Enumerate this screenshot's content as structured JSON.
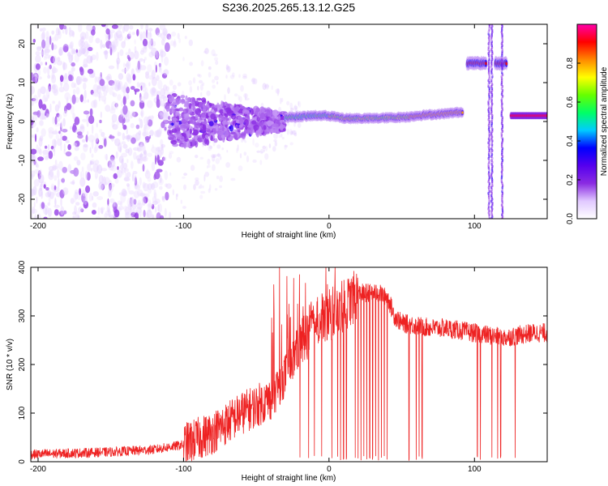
{
  "title": "S236.2025.265.13.12.G25",
  "chart_data": [
    {
      "type": "heatmap",
      "name": "spectrogram",
      "xlabel": "Height of straight line (km)",
      "ylabel": "Frequency (Hz)",
      "xlim": [
        -205,
        150
      ],
      "ylim": [
        -25,
        25
      ],
      "xticks": [
        -200,
        -100,
        0,
        100
      ],
      "yticks": [
        -20,
        -10,
        0,
        10,
        20
      ],
      "colorbar": {
        "label": "Normalized spectral amplitude",
        "range": [
          0,
          1
        ],
        "ticks": [
          "0.0",
          "0.2",
          "0.4",
          "0.6",
          "0.8"
        ],
        "colors": [
          "#ffffff",
          "#e0c8ff",
          "#8a2be2",
          "#5500ee",
          "#0000ff",
          "#00ccff",
          "#00ff66",
          "#66ff00",
          "#ffff00",
          "#ff8800",
          "#ff0000",
          "#ff00aa"
        ]
      },
      "features": [
        {
          "name": "noise",
          "x_range": [
            -205,
            -110
          ],
          "freq_range": [
            -25,
            25
          ],
          "amplitude": 0.05
        },
        {
          "name": "noisy-signal",
          "x_range": [
            -110,
            -30
          ],
          "freq_range": [
            -8,
            6
          ],
          "amplitude": 0.12
        },
        {
          "name": "carrier",
          "x": [
            -30,
            -10,
            0,
            10,
            30,
            55,
            60,
            80,
            92
          ],
          "freq": [
            1,
            1.5,
            1.5,
            0.8,
            0.8,
            1.2,
            1.5,
            2,
            2.5
          ],
          "amplitude": 0.8
        },
        {
          "name": "high-band",
          "x_range": [
            95,
            122
          ],
          "freq": 15,
          "amplitude": 0.9
        },
        {
          "name": "carrier-late",
          "x_range": [
            125,
            150
          ],
          "freq": 1.5,
          "amplitude": 0.95
        }
      ]
    },
    {
      "type": "line",
      "name": "snr",
      "xlabel": "Height of straight line (km)",
      "ylabel": "SNR (10 * v/v)",
      "xlim": [
        -205,
        150
      ],
      "ylim": [
        0,
        400
      ],
      "xticks": [
        -200,
        -100,
        0,
        100
      ],
      "yticks": [
        0,
        100,
        200,
        300,
        400
      ],
      "color": "#ee2222",
      "trend_x": [
        -205,
        -150,
        -120,
        -100,
        -80,
        -60,
        -40,
        -30,
        -20,
        -10,
        0,
        10,
        20,
        30,
        40,
        45,
        50,
        60,
        70,
        80,
        90,
        100,
        110,
        120,
        130,
        140,
        150
      ],
      "trend_y": [
        15,
        20,
        25,
        35,
        60,
        100,
        130,
        180,
        240,
        290,
        300,
        320,
        345,
        350,
        340,
        300,
        285,
        280,
        275,
        275,
        270,
        265,
        260,
        255,
        260,
        265,
        265
      ],
      "dropouts": [
        -20,
        -14,
        -10,
        -5,
        2,
        6,
        8,
        10,
        12,
        18,
        20,
        22,
        24,
        26,
        28,
        30,
        32,
        34,
        36,
        38,
        40,
        55,
        60,
        62,
        64,
        102,
        104,
        112,
        116,
        118,
        128
      ]
    }
  ]
}
